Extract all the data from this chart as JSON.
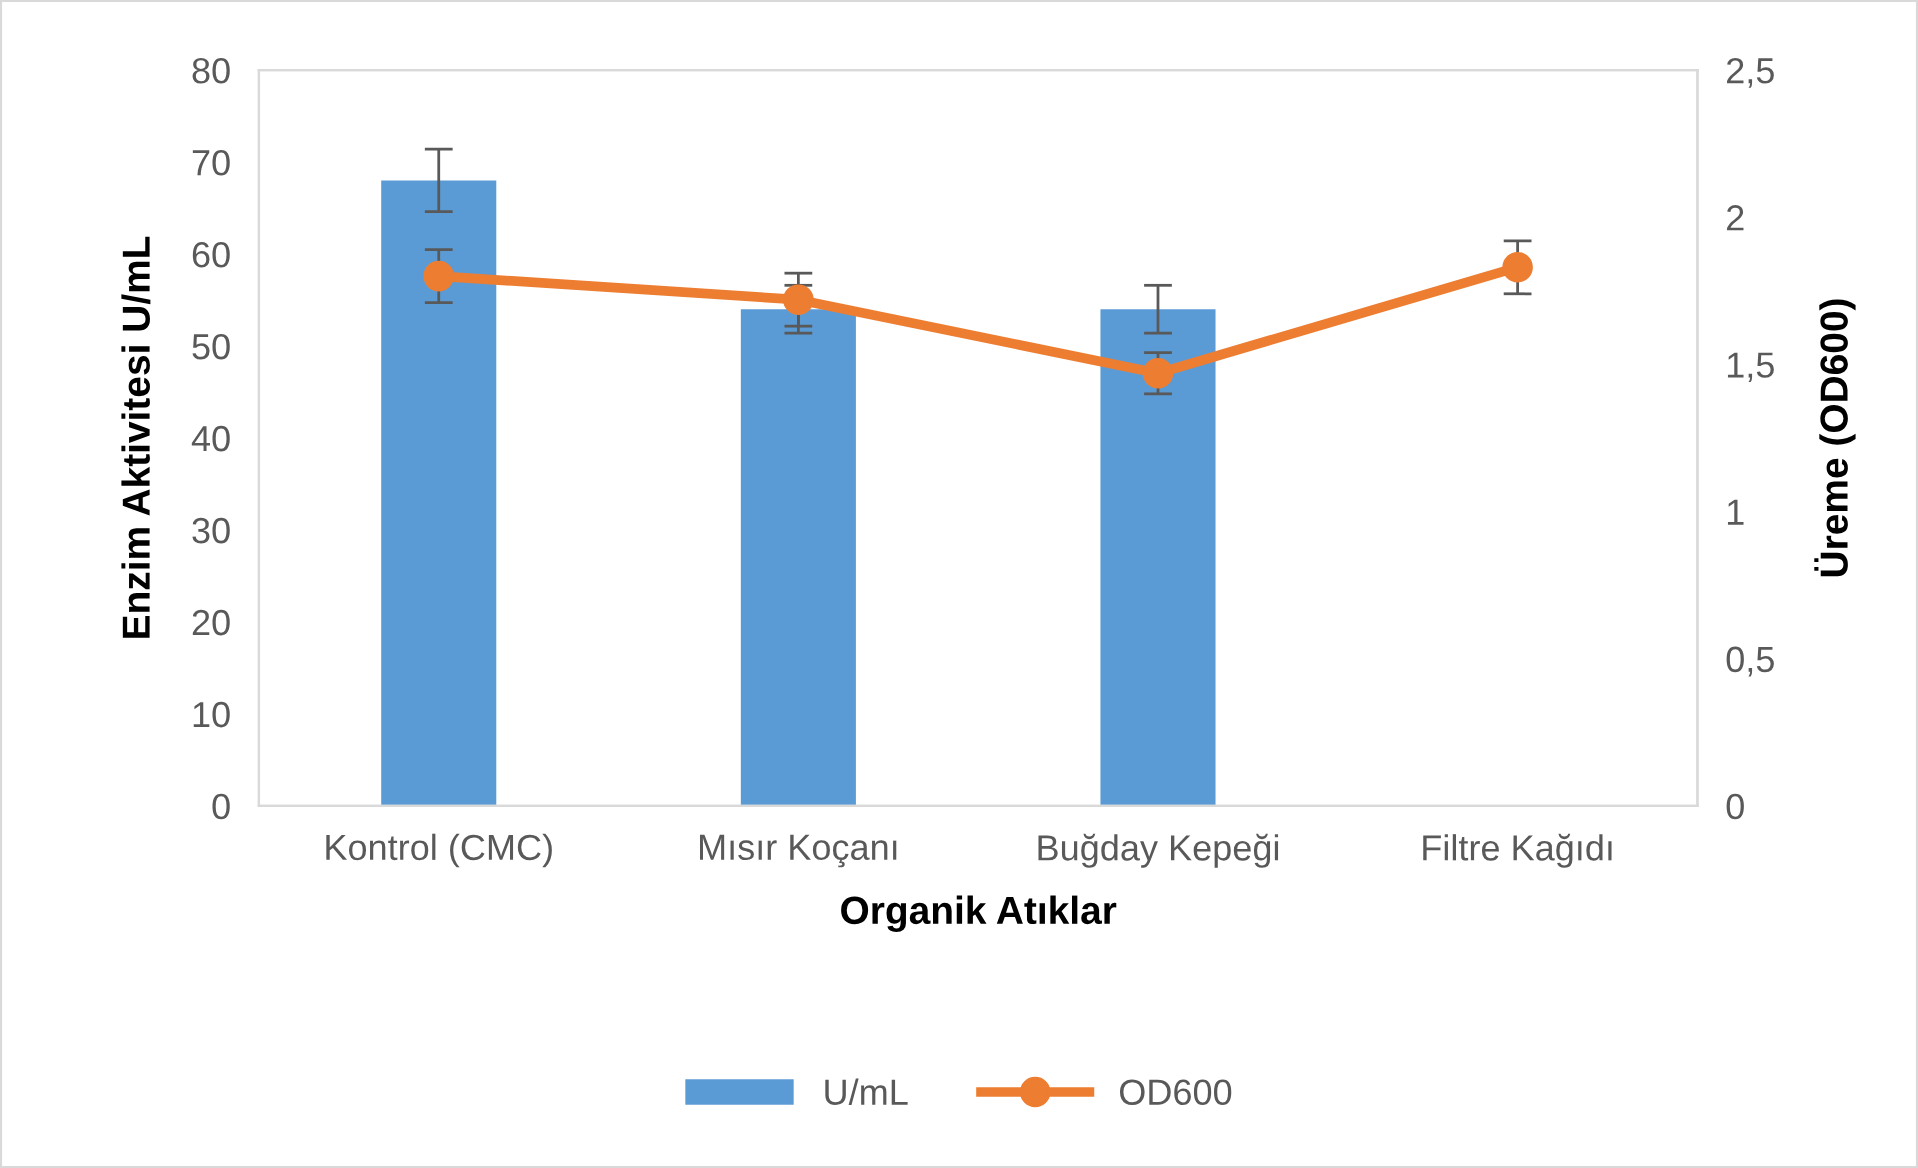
{
  "chart_data": {
    "type": "bar",
    "xlabel": "Organik Atıklar",
    "ylabel": "Enzim Aktivitesi U/mL",
    "y2label": "Üreme (OD600)",
    "categories": [
      "Kontrol (CMC)",
      "Mısır Koçanı",
      "Buğday Kepeği",
      "Filtre Kağıdı"
    ],
    "series": [
      {
        "name": "U/mL",
        "color": "#5b9bd5",
        "axis": "y",
        "values": [
          68,
          54,
          54,
          null
        ],
        "errors": [
          3.4,
          2.6,
          2.6,
          null
        ]
      },
      {
        "name": "OD600",
        "type": "line",
        "color": "#ed7d31",
        "axis": "y2",
        "marker": "circle",
        "line_style": "solid",
        "values": [
          1.8,
          1.72,
          1.47,
          1.83
        ],
        "errors": [
          0.09,
          0.09,
          0.07,
          0.09
        ]
      }
    ],
    "ylim": [
      0,
      80
    ],
    "yticks": [
      0,
      10,
      20,
      30,
      40,
      50,
      60,
      70,
      80
    ],
    "y2lim": [
      0,
      2.5
    ],
    "y2ticks": [
      0,
      {
        "value": 0.5,
        "label": "0,5"
      },
      1,
      {
        "value": 1.5,
        "label": "1,5"
      },
      2,
      {
        "value": 2.5,
        "label": "2,5"
      }
    ],
    "grid": false,
    "legend": "bottom"
  }
}
